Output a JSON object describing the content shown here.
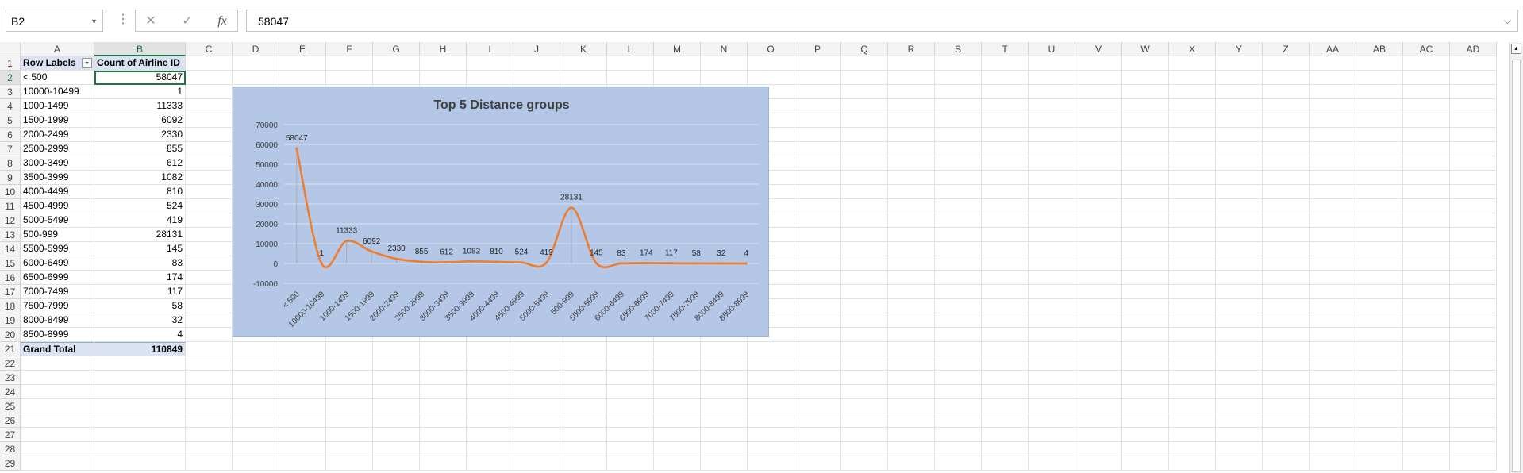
{
  "formula_bar": {
    "name_box": "B2",
    "cancel_icon": "✕",
    "enter_icon": "✓",
    "fx_label": "fx",
    "value": "58047"
  },
  "columns": [
    "A",
    "B",
    "C",
    "D",
    "E",
    "F",
    "G",
    "H",
    "I",
    "J",
    "K",
    "L",
    "M",
    "N",
    "O",
    "P",
    "Q",
    "R",
    "S",
    "T",
    "U",
    "V",
    "W",
    "X",
    "Y",
    "Z",
    "AA",
    "AB",
    "AC",
    "AD"
  ],
  "selected_column": "B",
  "row_count": 29,
  "selected_row": 2,
  "pivot": {
    "header": {
      "label": "Row Labels",
      "value": "Count of Airline ID"
    },
    "rows": [
      {
        "label": "< 500",
        "value": "58047"
      },
      {
        "label": "10000-10499",
        "value": "1"
      },
      {
        "label": "1000-1499",
        "value": "11333"
      },
      {
        "label": "1500-1999",
        "value": "6092"
      },
      {
        "label": "2000-2499",
        "value": "2330"
      },
      {
        "label": "2500-2999",
        "value": "855"
      },
      {
        "label": "3000-3499",
        "value": "612"
      },
      {
        "label": "3500-3999",
        "value": "1082"
      },
      {
        "label": "4000-4499",
        "value": "810"
      },
      {
        "label": "4500-4999",
        "value": "524"
      },
      {
        "label": "5000-5499",
        "value": "419"
      },
      {
        "label": "500-999",
        "value": "28131"
      },
      {
        "label": "5500-5999",
        "value": "145"
      },
      {
        "label": "6000-6499",
        "value": "83"
      },
      {
        "label": "6500-6999",
        "value": "174"
      },
      {
        "label": "7000-7499",
        "value": "117"
      },
      {
        "label": "7500-7999",
        "value": "58"
      },
      {
        "label": "8000-8499",
        "value": "32"
      },
      {
        "label": "8500-8999",
        "value": "4"
      }
    ],
    "total": {
      "label": "Grand Total",
      "value": "110849"
    }
  },
  "chart_data": {
    "type": "line",
    "title": "Top 5 Distance groups",
    "smooth": true,
    "line_color": "#ed7d31",
    "background": "#b4c7e7",
    "ylim": [
      -10000,
      70000
    ],
    "yticks": [
      -10000,
      0,
      10000,
      20000,
      30000,
      40000,
      50000,
      60000,
      70000
    ],
    "grid": true,
    "categories": [
      "< 500",
      "10000-10499",
      "1000-1499",
      "1500-1999",
      "2000-2499",
      "2500-2999",
      "3000-3499",
      "3500-3999",
      "4000-4499",
      "4500-4999",
      "5000-5499",
      "500-999",
      "5500-5999",
      "6000-6499",
      "6500-6999",
      "7000-7499",
      "7500-7999",
      "8000-8499",
      "8500-8999"
    ],
    "values": [
      58047,
      1,
      11333,
      6092,
      2330,
      855,
      612,
      1082,
      810,
      524,
      419,
      28131,
      145,
      83,
      174,
      117,
      58,
      32,
      4
    ],
    "data_labels": true
  }
}
